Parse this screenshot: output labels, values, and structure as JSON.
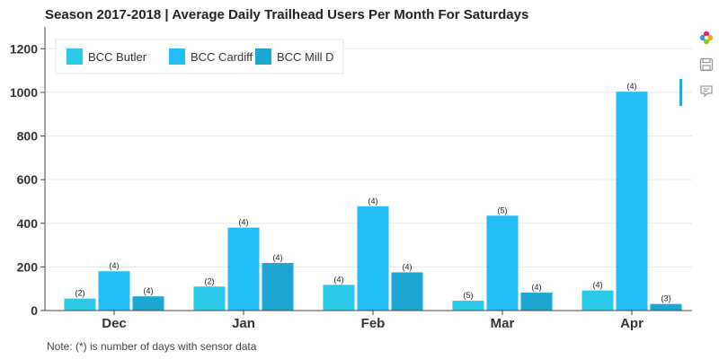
{
  "chart_data": {
    "type": "bar",
    "title": "Season 2017-2018 | Average Daily Trailhead Users Per Month For Saturdays",
    "categories": [
      "Dec",
      "Jan",
      "Feb",
      "Mar",
      "Apr"
    ],
    "series": [
      {
        "name": "BCC Butler",
        "color": "#2bc8e8",
        "values": [
          55,
          110,
          118,
          45,
          92
        ],
        "labels": [
          "(2)",
          "(2)",
          "(4)",
          "(5)",
          "(4)"
        ]
      },
      {
        "name": "BCC Cardiff",
        "color": "#22bcf7",
        "values": [
          180,
          380,
          478,
          435,
          1003
        ],
        "labels": [
          "(4)",
          "(4)",
          "(4)",
          "(5)",
          "(4)"
        ]
      },
      {
        "name": "BCC Mill D",
        "color": "#1ea6d2",
        "values": [
          65,
          218,
          175,
          82,
          30
        ],
        "labels": [
          "(4)",
          "(4)",
          "(4)",
          "(4)",
          "(3)"
        ]
      }
    ],
    "ylim": [
      0,
      1300
    ],
    "yticks": [
      0,
      200,
      400,
      600,
      800,
      1000,
      1200
    ],
    "xlabel": "",
    "ylabel": "",
    "grid": true,
    "legend_position": "top-left"
  },
  "footnote": "Note: (*) is number of days with sensor data",
  "toolbar": {
    "items": [
      {
        "name": "bokeh-logo-icon"
      },
      {
        "name": "save-icon"
      },
      {
        "name": "hover-icon"
      }
    ]
  }
}
